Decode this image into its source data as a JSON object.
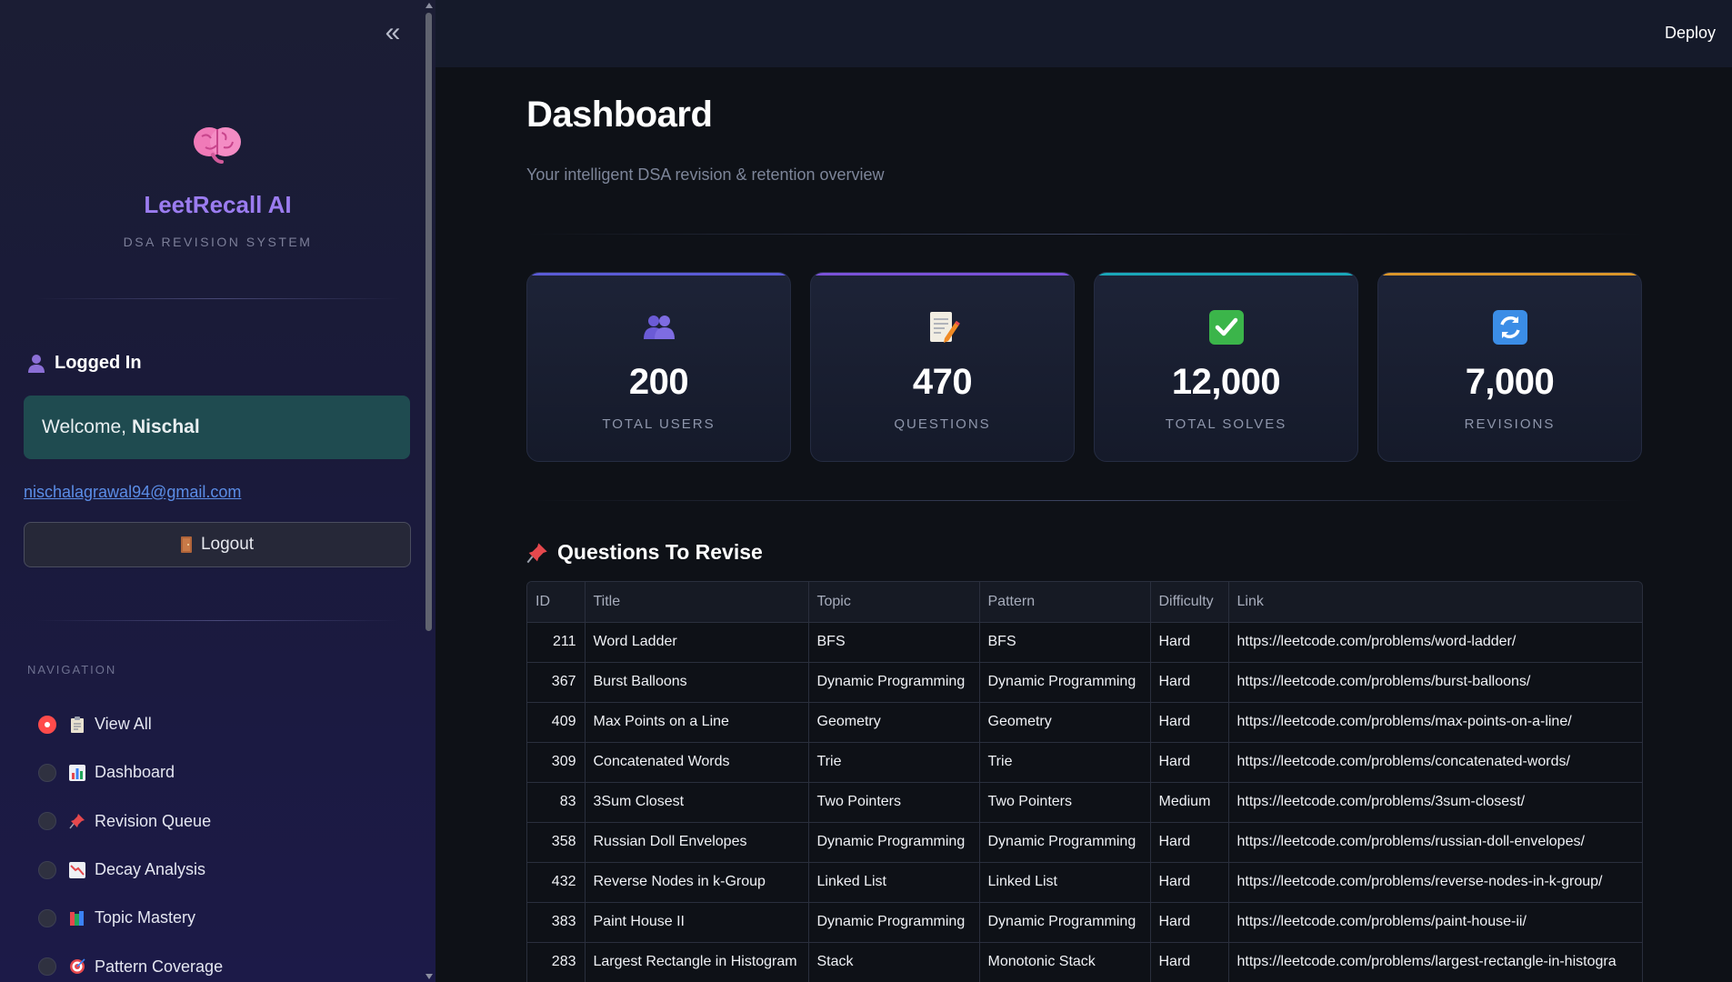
{
  "app": {
    "name": "LeetRecall AI",
    "subtitle": "DSA REVISION SYSTEM"
  },
  "topbar": {
    "deploy_label": "Deploy"
  },
  "user": {
    "status_label": "Logged In",
    "welcome_prefix": "Welcome,",
    "name": "Nischal",
    "email": "nischalagrawal94@gmail.com",
    "logout_label": "Logout"
  },
  "navigation": {
    "heading": "NAVIGATION",
    "selected": "View All",
    "items": [
      {
        "label": "View All",
        "icon": "clipboard-icon",
        "checked": true
      },
      {
        "label": "Dashboard",
        "icon": "bar-chart-icon",
        "checked": false
      },
      {
        "label": "Revision Queue",
        "icon": "pushpin-icon",
        "checked": false
      },
      {
        "label": "Decay Analysis",
        "icon": "chart-decreasing-icon",
        "checked": false
      },
      {
        "label": "Topic Mastery",
        "icon": "books-icon",
        "checked": false
      },
      {
        "label": "Pattern Coverage",
        "icon": "target-icon",
        "checked": false
      }
    ]
  },
  "page": {
    "title": "Dashboard",
    "subtitle": "Your intelligent DSA revision & retention overview"
  },
  "stats": [
    {
      "value": "200",
      "label": "TOTAL USERS",
      "icon": "users-icon",
      "accent": "#5b5bd6"
    },
    {
      "value": "470",
      "label": "QUESTIONS",
      "icon": "memo-icon",
      "accent": "#7b52d9"
    },
    {
      "value": "12,000",
      "label": "TOTAL SOLVES",
      "icon": "check-mark-icon",
      "accent": "#1aa7b8"
    },
    {
      "value": "7,000",
      "label": "REVISIONS",
      "icon": "refresh-icon",
      "accent": "#d9952a"
    }
  ],
  "revise": {
    "title": "Questions To Revise",
    "columns": [
      "ID",
      "Title",
      "Topic",
      "Pattern",
      "Difficulty",
      "Link"
    ],
    "rows": [
      [
        "211",
        "Word Ladder",
        "BFS",
        "BFS",
        "Hard",
        "https://leetcode.com/problems/word-ladder/"
      ],
      [
        "367",
        "Burst Balloons",
        "Dynamic Programming",
        "Dynamic Programming",
        "Hard",
        "https://leetcode.com/problems/burst-balloons/"
      ],
      [
        "409",
        "Max Points on a Line",
        "Geometry",
        "Geometry",
        "Hard",
        "https://leetcode.com/problems/max-points-on-a-line/"
      ],
      [
        "309",
        "Concatenated Words",
        "Trie",
        "Trie",
        "Hard",
        "https://leetcode.com/problems/concatenated-words/"
      ],
      [
        "83",
        "3Sum Closest",
        "Two Pointers",
        "Two Pointers",
        "Medium",
        "https://leetcode.com/problems/3sum-closest/"
      ],
      [
        "358",
        "Russian Doll Envelopes",
        "Dynamic Programming",
        "Dynamic Programming",
        "Hard",
        "https://leetcode.com/problems/russian-doll-envelopes/"
      ],
      [
        "432",
        "Reverse Nodes in k-Group",
        "Linked List",
        "Linked List",
        "Hard",
        "https://leetcode.com/problems/reverse-nodes-in-k-group/"
      ],
      [
        "383",
        "Paint House II",
        "Dynamic Programming",
        "Dynamic Programming",
        "Hard",
        "https://leetcode.com/problems/paint-house-ii/"
      ],
      [
        "283",
        "Largest Rectangle in Histogram",
        "Stack",
        "Monotonic Stack",
        "Hard",
        "https://leetcode.com/problems/largest-rectangle-in-histogra"
      ],
      [
        "",
        "",
        "",
        "",
        "",
        ""
      ]
    ]
  }
}
